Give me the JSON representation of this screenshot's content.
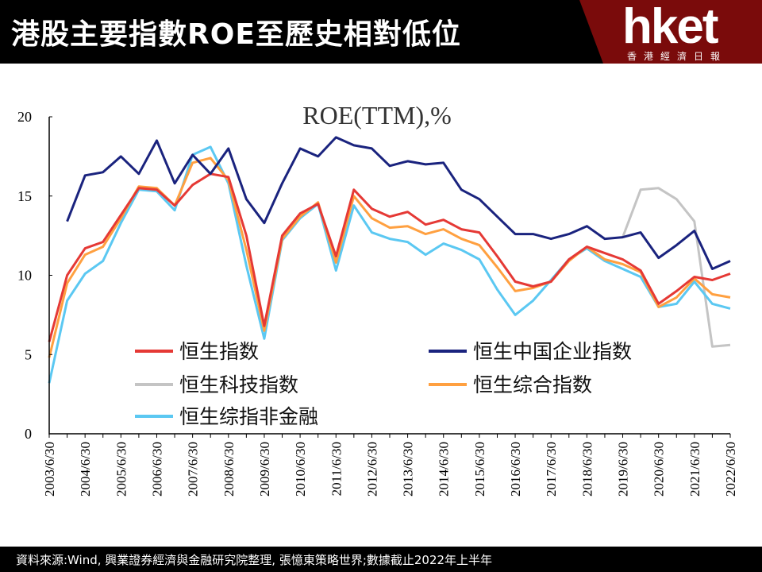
{
  "header": {
    "title": "港股主要指數ROE至歷史相對低位",
    "logo": "hket",
    "logo_sub": "香港經濟日報"
  },
  "footer": {
    "source": "資料來源:Wind, 興業證券經濟與金融研究院整理, 張憶東策略世界;數據截止2022年上半年"
  },
  "colors": {
    "header_bg": "#000000",
    "header_accent": "#7a0b0b",
    "footer_bg": "#000000"
  },
  "chart_data": {
    "type": "line",
    "title": "ROE(TTM),%",
    "xlabel": "",
    "ylabel": "",
    "ylim": [
      0,
      20
    ],
    "yticks": [
      "0",
      "5",
      "10",
      "15",
      "20"
    ],
    "xlim": [
      2003.5,
      2022.5
    ],
    "x_tick_labels": [
      "2003/6/30",
      "2004/6/30",
      "2005/6/30",
      "2006/6/30",
      "2007/6/30",
      "2008/6/30",
      "2009/6/30",
      "2010/6/30",
      "2011/6/30",
      "2012/6/30",
      "2013/6/30",
      "2014/6/30",
      "2015/6/30",
      "2016/6/30",
      "2017/6/30",
      "2018/6/30",
      "2019/6/30",
      "2020/6/30",
      "2021/6/30",
      "2022/6/30"
    ],
    "grid": false,
    "legend": "bottom-left, two columns",
    "series": [
      {
        "name": "恒生指数",
        "color": "#e53935",
        "points": [
          [
            2003.5,
            5.8
          ],
          [
            2004.0,
            10.0
          ],
          [
            2004.5,
            11.7
          ],
          [
            2005.0,
            12.1
          ],
          [
            2005.5,
            13.8
          ],
          [
            2006.0,
            15.5
          ],
          [
            2006.5,
            15.4
          ],
          [
            2007.0,
            14.4
          ],
          [
            2007.5,
            15.7
          ],
          [
            2008.0,
            16.4
          ],
          [
            2008.5,
            16.2
          ],
          [
            2009.0,
            12.5
          ],
          [
            2009.5,
            6.8
          ],
          [
            2010.0,
            12.5
          ],
          [
            2010.5,
            13.9
          ],
          [
            2011.0,
            14.5
          ],
          [
            2011.5,
            11.2
          ],
          [
            2012.0,
            15.4
          ],
          [
            2012.5,
            14.2
          ],
          [
            2013.0,
            13.7
          ],
          [
            2013.5,
            14.0
          ],
          [
            2014.0,
            13.2
          ],
          [
            2014.5,
            13.5
          ],
          [
            2015.0,
            12.9
          ],
          [
            2015.5,
            12.7
          ],
          [
            2016.0,
            11.2
          ],
          [
            2016.5,
            9.6
          ],
          [
            2017.0,
            9.3
          ],
          [
            2017.5,
            9.6
          ],
          [
            2018.0,
            11.0
          ],
          [
            2018.5,
            11.8
          ],
          [
            2019.0,
            11.4
          ],
          [
            2019.5,
            11.0
          ],
          [
            2020.0,
            10.3
          ],
          [
            2020.5,
            8.2
          ],
          [
            2021.0,
            9.0
          ],
          [
            2021.5,
            9.9
          ],
          [
            2022.0,
            9.7
          ],
          [
            2022.5,
            10.1
          ]
        ]
      },
      {
        "name": "恒生中国企业指数",
        "color": "#1a237e",
        "points": [
          [
            2004.0,
            13.4
          ],
          [
            2004.5,
            16.3
          ],
          [
            2005.0,
            16.5
          ],
          [
            2005.5,
            17.5
          ],
          [
            2006.0,
            16.4
          ],
          [
            2006.5,
            18.5
          ],
          [
            2007.0,
            15.8
          ],
          [
            2007.5,
            17.6
          ],
          [
            2008.0,
            16.4
          ],
          [
            2008.5,
            18.0
          ],
          [
            2009.0,
            14.8
          ],
          [
            2009.5,
            13.3
          ],
          [
            2010.0,
            15.8
          ],
          [
            2010.5,
            18.0
          ],
          [
            2011.0,
            17.5
          ],
          [
            2011.5,
            18.7
          ],
          [
            2012.0,
            18.2
          ],
          [
            2012.5,
            18.0
          ],
          [
            2013.0,
            16.9
          ],
          [
            2013.5,
            17.2
          ],
          [
            2014.0,
            17.0
          ],
          [
            2014.5,
            17.1
          ],
          [
            2015.0,
            15.4
          ],
          [
            2015.5,
            14.8
          ],
          [
            2016.0,
            13.7
          ],
          [
            2016.5,
            12.6
          ],
          [
            2017.0,
            12.6
          ],
          [
            2017.5,
            12.3
          ],
          [
            2018.0,
            12.6
          ],
          [
            2018.5,
            13.1
          ],
          [
            2019.0,
            12.3
          ],
          [
            2019.5,
            12.4
          ],
          [
            2020.0,
            12.7
          ],
          [
            2020.5,
            11.1
          ],
          [
            2021.0,
            11.9
          ],
          [
            2021.5,
            12.8
          ],
          [
            2022.0,
            10.4
          ],
          [
            2022.5,
            10.9
          ]
        ]
      },
      {
        "name": "恒生科技指数",
        "color": "#c4c4c4",
        "points": [
          [
            2019.5,
            12.4
          ],
          [
            2020.0,
            15.4
          ],
          [
            2020.5,
            15.5
          ],
          [
            2021.0,
            14.8
          ],
          [
            2021.5,
            13.4
          ],
          [
            2022.0,
            5.5
          ],
          [
            2022.5,
            5.6
          ]
        ]
      },
      {
        "name": "恒生综合指数",
        "color": "#ffa040",
        "points": [
          [
            2003.5,
            4.8
          ],
          [
            2004.0,
            9.5
          ],
          [
            2004.5,
            11.3
          ],
          [
            2005.0,
            11.8
          ],
          [
            2005.5,
            13.6
          ],
          [
            2006.0,
            15.6
          ],
          [
            2006.5,
            15.5
          ],
          [
            2007.0,
            14.4
          ],
          [
            2007.5,
            17.1
          ],
          [
            2008.0,
            17.4
          ],
          [
            2008.5,
            16.0
          ],
          [
            2009.0,
            11.6
          ],
          [
            2009.5,
            6.5
          ],
          [
            2010.0,
            12.3
          ],
          [
            2010.5,
            13.7
          ],
          [
            2011.0,
            14.6
          ],
          [
            2011.5,
            10.8
          ],
          [
            2012.0,
            15.0
          ],
          [
            2012.5,
            13.6
          ],
          [
            2013.0,
            13.0
          ],
          [
            2013.5,
            13.1
          ],
          [
            2014.0,
            12.6
          ],
          [
            2014.5,
            12.9
          ],
          [
            2015.0,
            12.3
          ],
          [
            2015.5,
            11.9
          ],
          [
            2016.0,
            10.5
          ],
          [
            2016.5,
            9.0
          ],
          [
            2017.0,
            9.2
          ],
          [
            2017.5,
            9.6
          ],
          [
            2018.0,
            10.9
          ],
          [
            2018.5,
            11.8
          ],
          [
            2019.0,
            11.0
          ],
          [
            2019.5,
            10.7
          ],
          [
            2020.0,
            10.2
          ],
          [
            2020.5,
            8.0
          ],
          [
            2021.0,
            8.6
          ],
          [
            2021.5,
            9.8
          ],
          [
            2022.0,
            8.8
          ],
          [
            2022.5,
            8.6
          ]
        ]
      },
      {
        "name": "恒生综指非金融",
        "color": "#5bc8f2",
        "points": [
          [
            2003.5,
            3.2
          ],
          [
            2004.0,
            8.4
          ],
          [
            2004.5,
            10.1
          ],
          [
            2005.0,
            10.9
          ],
          [
            2005.5,
            13.3
          ],
          [
            2006.0,
            15.4
          ],
          [
            2006.5,
            15.3
          ],
          [
            2007.0,
            14.1
          ],
          [
            2007.5,
            17.6
          ],
          [
            2008.0,
            18.1
          ],
          [
            2008.5,
            15.8
          ],
          [
            2009.0,
            10.6
          ],
          [
            2009.5,
            6.0
          ],
          [
            2010.0,
            12.2
          ],
          [
            2010.5,
            13.6
          ],
          [
            2011.0,
            14.5
          ],
          [
            2011.5,
            10.3
          ],
          [
            2012.0,
            14.4
          ],
          [
            2012.5,
            12.7
          ],
          [
            2013.0,
            12.3
          ],
          [
            2013.5,
            12.1
          ],
          [
            2014.0,
            11.3
          ],
          [
            2014.5,
            12.0
          ],
          [
            2015.0,
            11.6
          ],
          [
            2015.5,
            11.0
          ],
          [
            2016.0,
            9.1
          ],
          [
            2016.5,
            7.5
          ],
          [
            2017.0,
            8.4
          ],
          [
            2017.5,
            9.7
          ],
          [
            2018.0,
            11.0
          ],
          [
            2018.5,
            11.7
          ],
          [
            2019.0,
            10.9
          ],
          [
            2019.5,
            10.4
          ],
          [
            2020.0,
            9.9
          ],
          [
            2020.5,
            8.0
          ],
          [
            2021.0,
            8.2
          ],
          [
            2021.5,
            9.6
          ],
          [
            2022.0,
            8.2
          ],
          [
            2022.5,
            7.9
          ]
        ]
      }
    ]
  }
}
